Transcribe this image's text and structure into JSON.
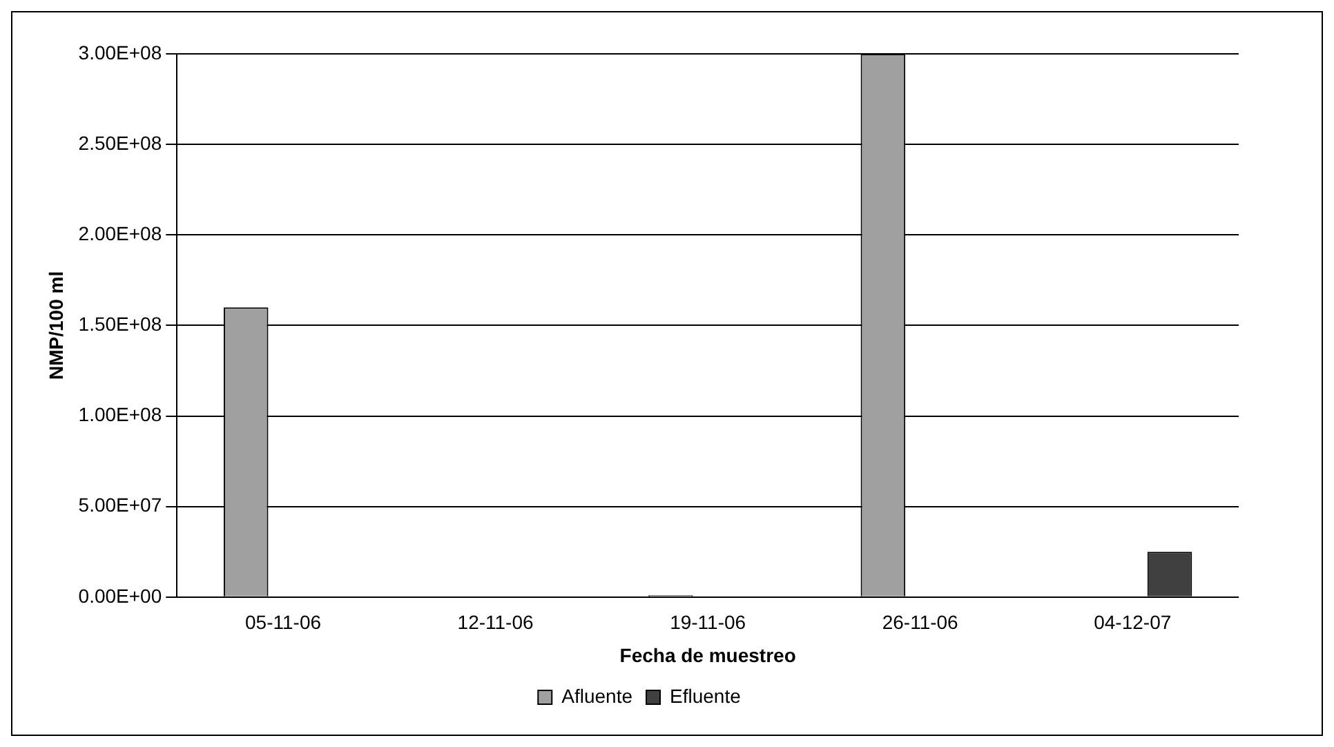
{
  "chart_data": {
    "type": "bar",
    "xlabel": "Fecha de muestreo",
    "ylabel": "NMP/100 ml",
    "categories": [
      "05-11-06",
      "12-11-06",
      "19-11-06",
      "26-11-06",
      "04-12-07"
    ],
    "series": [
      {
        "name": "Afluente",
        "color": "#a0a0a0",
        "values": [
          160000000,
          0,
          1000000,
          300000000,
          0
        ]
      },
      {
        "name": "Efluente",
        "color": "#404040",
        "values": [
          0,
          0,
          0,
          0,
          25000000
        ]
      }
    ],
    "ylim": [
      0,
      300000000
    ],
    "yticks": [
      {
        "value": 0,
        "label": "0.00E+00"
      },
      {
        "value": 50000000,
        "label": "5.00E+07"
      },
      {
        "value": 100000000,
        "label": "1.00E+08"
      },
      {
        "value": 150000000,
        "label": "1.50E+08"
      },
      {
        "value": 200000000,
        "label": "2.00E+08"
      },
      {
        "value": 250000000,
        "label": "2.50E+08"
      },
      {
        "value": 300000000,
        "label": "3.00E+08"
      }
    ],
    "grid": "y",
    "legend": "bottom"
  }
}
